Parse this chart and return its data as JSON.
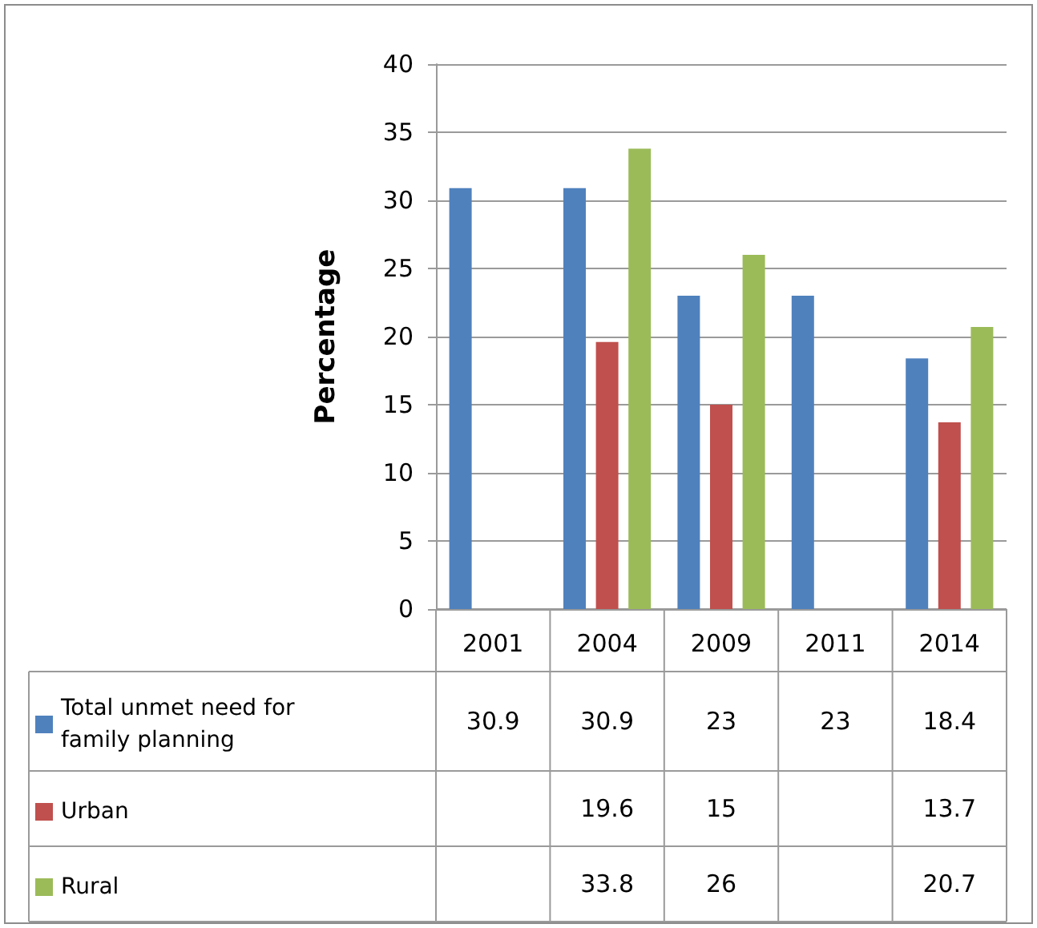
{
  "chart_data": {
    "type": "bar",
    "ylabel": "Percentage",
    "categories": [
      "2001",
      "2004",
      "2009",
      "2011",
      "2014"
    ],
    "series": [
      {
        "name": "Total unmet need for family planning",
        "color": "#4f81bd",
        "values": [
          30.9,
          30.9,
          23,
          23,
          18.4
        ]
      },
      {
        "name": "Urban",
        "color": "#c0504d",
        "values": [
          null,
          19.6,
          15,
          null,
          13.7
        ]
      },
      {
        "name": "Rural",
        "color": "#9bbb59",
        "values": [
          null,
          33.8,
          26,
          null,
          20.7
        ]
      }
    ],
    "ylim": [
      0,
      40
    ],
    "yticks": [
      0,
      5,
      10,
      15,
      20,
      25,
      30,
      35,
      40
    ],
    "grid": "y",
    "legend": "bottom left",
    "data_labels": true
  }
}
